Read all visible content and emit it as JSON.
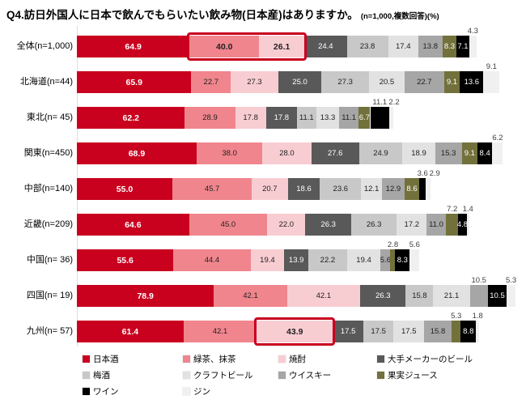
{
  "title": {
    "main": "Q4.訪日外国人に日本で飲んでもらいたい飲み物(日本産)はありますか。",
    "note": "(n=1,000,複数回答)(%)"
  },
  "chart_data": {
    "type": "bar",
    "subtype": "stacked-horizontal",
    "unit": "%",
    "grid": false,
    "legend_position": "bottom",
    "xlim": [
      0,
      255
    ],
    "categories": [
      "日本酒",
      "緑茶、抹茶",
      "焼酎",
      "大手メーカーのビール",
      "梅酒",
      "クラフトビール",
      "ウイスキー",
      "果実ジュース",
      "ワイン",
      "ジン"
    ],
    "category_colors": [
      "#C9001E",
      "#F0858D",
      "#F8CDD2",
      "#595959",
      "#C8C8C8",
      "#E2E2E2",
      "#A6A6A6",
      "#72713B",
      "#000000",
      "#F0F0F0"
    ],
    "category_text_colors": [
      "#FFFFFF",
      "#222222",
      "#222222",
      "#FFFFFF",
      "#222222",
      "#222222",
      "#222222",
      "#FFFFFF",
      "#FFFFFF",
      "#222222"
    ],
    "rows": [
      {
        "label": "全体(n=1,000)",
        "values": [
          64.9,
          40.0,
          26.1,
          24.4,
          23.8,
          17.4,
          13.8,
          8.3,
          7.1,
          4.3
        ],
        "above_labels": [
          9
        ],
        "bold_labels": [
          0,
          1,
          2
        ]
      },
      {
        "label": "北海道(n=44)",
        "values": [
          65.9,
          22.7,
          27.3,
          25.0,
          27.3,
          20.5,
          22.7,
          9.1,
          13.6,
          9.1
        ],
        "above_labels": [
          9
        ],
        "bold_labels": [
          0
        ]
      },
      {
        "label": "東北(n= 45)",
        "values": [
          62.2,
          28.9,
          17.8,
          17.8,
          11.1,
          13.3,
          11.1,
          6.7,
          11.1,
          2.2
        ],
        "above_labels": [
          8,
          9
        ],
        "bold_labels": [
          0
        ]
      },
      {
        "label": "関東(n=450)",
        "values": [
          68.9,
          38.0,
          28.0,
          27.6,
          24.9,
          18.9,
          15.3,
          9.1,
          8.4,
          6.2
        ],
        "above_labels": [
          9
        ],
        "bold_labels": [
          0
        ]
      },
      {
        "label": "中部(n=140)",
        "values": [
          55.0,
          45.7,
          20.7,
          18.6,
          23.6,
          12.1,
          12.9,
          8.6,
          3.6,
          2.9
        ],
        "above_labels": [
          8,
          9
        ],
        "bold_labels": [
          0
        ]
      },
      {
        "label": "近畿(n=209)",
        "values": [
          64.6,
          45.0,
          22.0,
          26.3,
          26.3,
          17.2,
          11.0,
          7.2,
          4.8,
          1.4
        ],
        "above_labels": [
          7,
          9
        ],
        "bold_labels": [
          0
        ]
      },
      {
        "label": "中国(n= 36)",
        "values": [
          55.6,
          44.4,
          19.4,
          13.9,
          22.2,
          19.4,
          5.6,
          2.8,
          8.3,
          5.6
        ],
        "above_labels": [
          7,
          9
        ],
        "bold_labels": [
          0
        ]
      },
      {
        "label": "四国(n= 19)",
        "values": [
          78.9,
          42.1,
          42.1,
          26.3,
          15.8,
          21.1,
          10.5,
          0.0,
          10.5,
          5.3
        ],
        "above_labels": [
          6,
          9
        ],
        "bold_labels": [
          0
        ]
      },
      {
        "label": "九州(n= 57)",
        "values": [
          61.4,
          42.1,
          43.9,
          17.5,
          17.5,
          17.5,
          15.8,
          5.3,
          8.8,
          1.8
        ],
        "above_labels": [
          7,
          9
        ],
        "bold_labels": [
          0,
          2
        ]
      }
    ],
    "highlights": [
      {
        "row": 0,
        "from_segment": 1,
        "to_segment": 2,
        "color": "#C9001E"
      },
      {
        "row": 8,
        "from_segment": 2,
        "to_segment": 2,
        "color": "#C9001E"
      }
    ]
  }
}
